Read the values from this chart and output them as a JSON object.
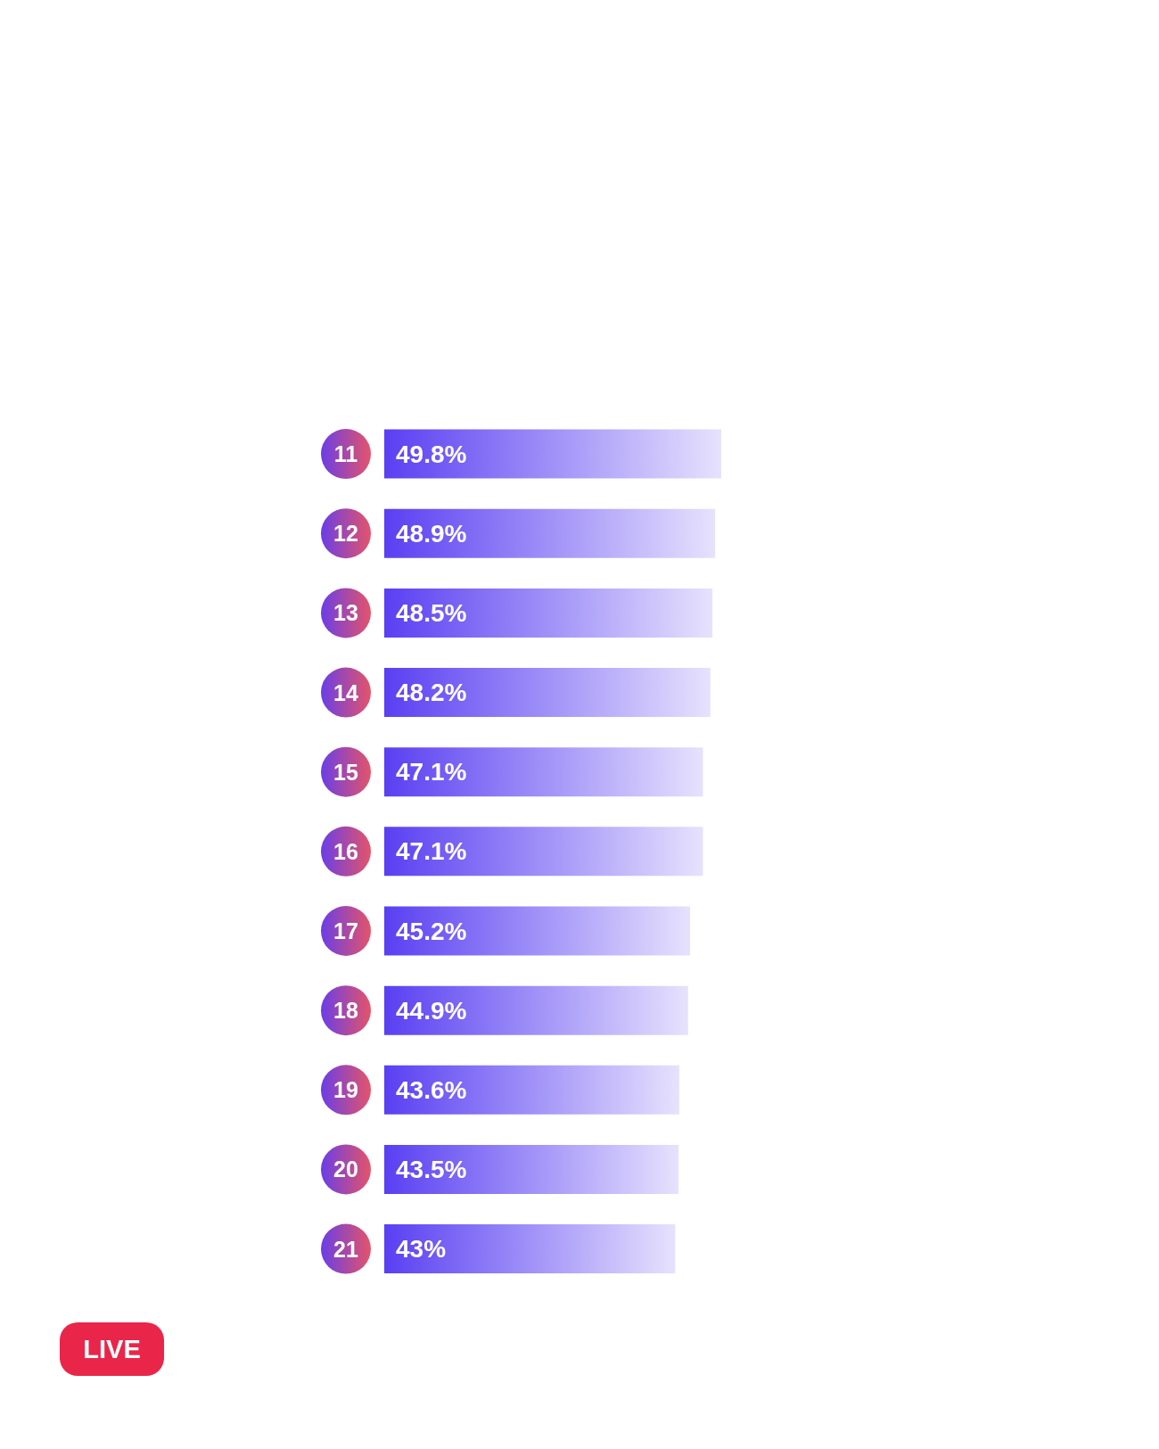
{
  "chart_data": {
    "type": "bar",
    "orientation": "horizontal",
    "categories": [
      "11",
      "12",
      "13",
      "14",
      "15",
      "16",
      "17",
      "18",
      "19",
      "20",
      "21"
    ],
    "values": [
      49.8,
      48.9,
      48.5,
      48.2,
      47.1,
      47.1,
      45.2,
      44.9,
      43.6,
      43.5,
      43
    ],
    "value_labels": [
      "49.8%",
      "48.9%",
      "48.5%",
      "48.2%",
      "47.1%",
      "47.1%",
      "45.2%",
      "44.9%",
      "43.6%",
      "43.5%",
      "43%"
    ],
    "color": "#5a3ff2",
    "tick_labels": "y",
    "grid": false,
    "annotations": [
      "LIVE"
    ]
  }
}
